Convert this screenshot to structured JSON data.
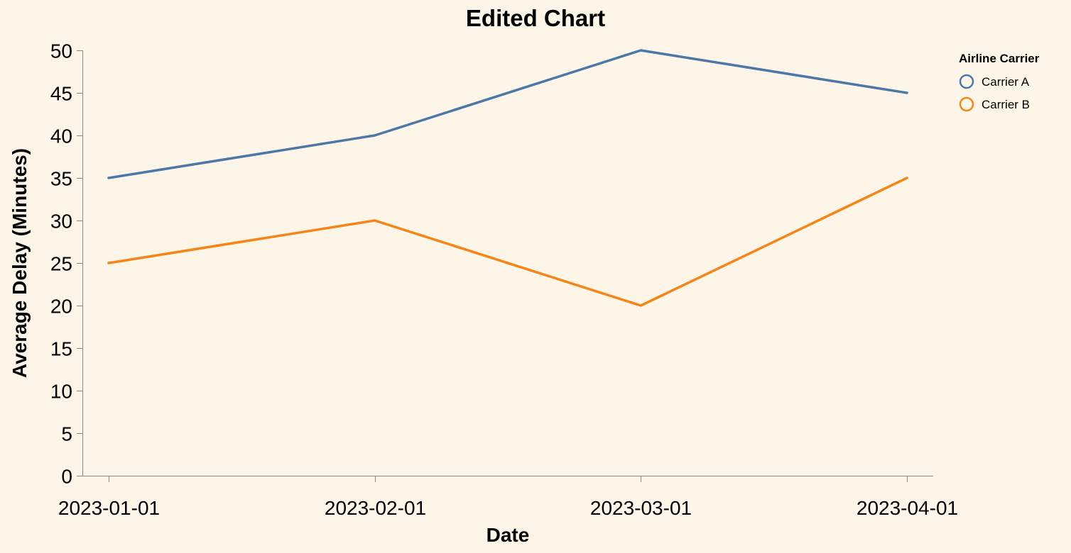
{
  "chart_data": {
    "type": "line",
    "title": "Edited Chart",
    "xlabel": "Date",
    "ylabel": "Average Delay (Minutes)",
    "categories": [
      "2023-01-01",
      "2023-02-01",
      "2023-03-01",
      "2023-04-01"
    ],
    "ylim": [
      0,
      50
    ],
    "yticks": [
      0,
      5,
      10,
      15,
      20,
      25,
      30,
      35,
      40,
      45,
      50
    ],
    "grid": false,
    "legend": {
      "title": "Airline Carrier",
      "position": "top-right"
    },
    "series": [
      {
        "name": "Carrier A",
        "color": "#4c78a8",
        "values": [
          35,
          40,
          50,
          45
        ]
      },
      {
        "name": "Carrier B",
        "color": "#f58518",
        "values": [
          25,
          30,
          20,
          35
        ]
      }
    ]
  }
}
